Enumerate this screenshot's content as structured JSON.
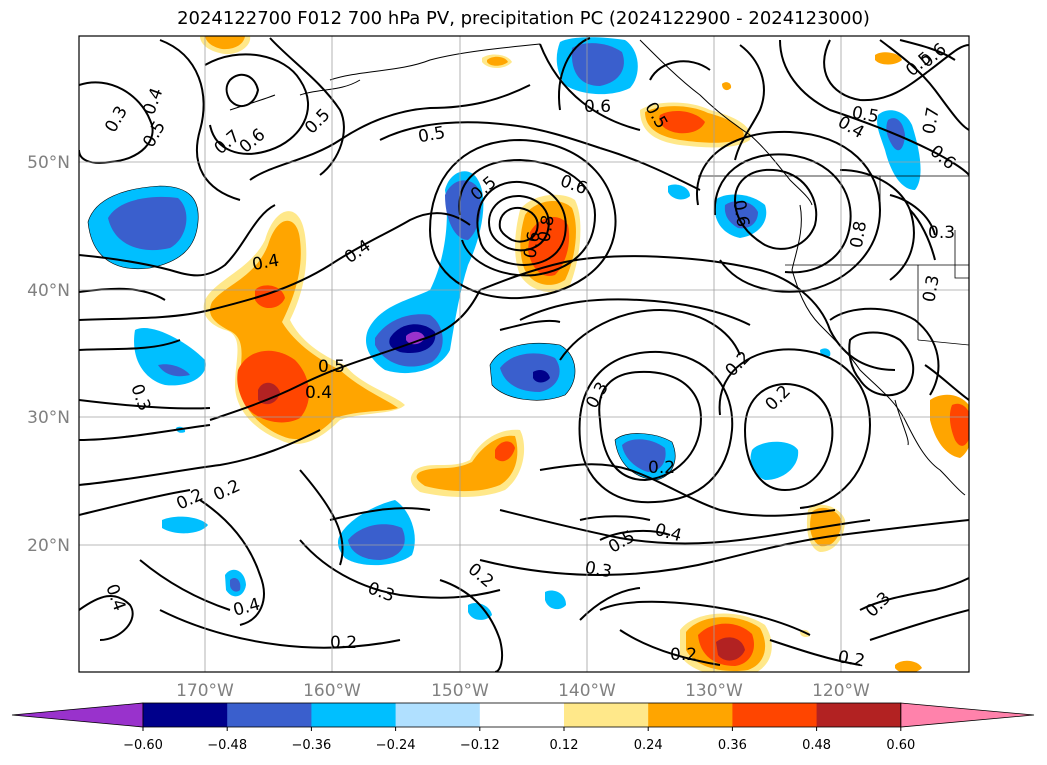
{
  "title": "2024122700 F012 700 hPa PV, precipitation PC (2024122900 - 2024123000)",
  "lat_labels": [
    "50°N",
    "40°N",
    "30°N",
    "20°N"
  ],
  "lon_labels": [
    "170°W",
    "160°W",
    "150°W",
    "140°W",
    "130°W",
    "120°W"
  ],
  "contour_labels": [
    "0.3",
    "0.4",
    "0.5",
    "0.6",
    "0.7",
    "0.5",
    "0.4",
    "0.5",
    "0.6",
    "0.5",
    "0.4",
    "0.6",
    "0.5",
    "0.6",
    "0.8",
    "0.6",
    "0.8",
    "0.3",
    "0.3",
    "0.4",
    "0.5",
    "0.4",
    "0.3",
    "0.2",
    "0.2",
    "0.3",
    "0.2",
    "0.2",
    "0.5",
    "0.4",
    "0.3",
    "0.2",
    "0.3",
    "0.4",
    "0.2",
    "0.2",
    "0.3",
    "0.2",
    "0.2",
    "0.6",
    "0.7",
    "0.4",
    "0.5",
    "0.5",
    "0.6"
  ],
  "colorbar": {
    "tick_labels": [
      "−0.60",
      "−0.48",
      "−0.36",
      "−0.24",
      "−0.12",
      "0.12",
      "0.24",
      "0.36",
      "0.48",
      "0.60"
    ],
    "colors": [
      "#9932cc",
      "#00008b",
      "#3a5fcd",
      "#00bfff",
      "#b0e0ff",
      "#ffffff",
      "#ffe88a",
      "#ffa500",
      "#ff4500",
      "#b22222",
      "#ff82ab"
    ]
  },
  "colors": {
    "neg_060": "#9932cc",
    "neg_048": "#00008b",
    "neg_036": "#3a5fcd",
    "neg_024": "#00bfff",
    "neg_012": "#b0e0ff",
    "pos_012": "#ffe88a",
    "pos_024": "#ffa500",
    "pos_036": "#ff4500",
    "pos_048": "#b22222",
    "pos_060": "#ff82ab"
  }
}
